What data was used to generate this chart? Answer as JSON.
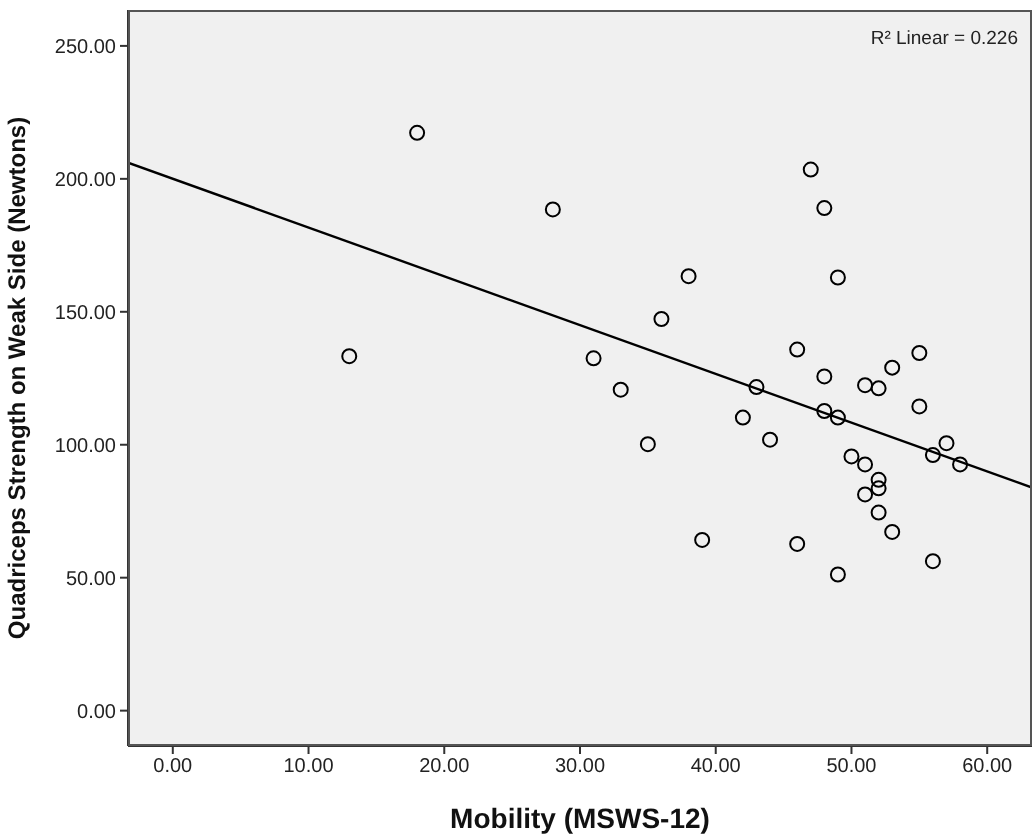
{
  "chart_data": {
    "type": "scatter",
    "xlabel": "Mobility (MSWS-12)",
    "ylabel": "Quadriceps Strength on Weak Side (Newtons)",
    "xlim": [
      -3.3,
      63.3
    ],
    "ylim": [
      -13.3,
      263.5
    ],
    "xticks": [
      {
        "value": 0,
        "label": "0.00"
      },
      {
        "value": 10,
        "label": "10.00"
      },
      {
        "value": 20,
        "label": "20.00"
      },
      {
        "value": 30,
        "label": "30.00"
      },
      {
        "value": 40,
        "label": "40.00"
      },
      {
        "value": 50,
        "label": "50.00"
      },
      {
        "value": 60,
        "label": "60.00"
      }
    ],
    "yticks": [
      {
        "value": 0,
        "label": "0.00"
      },
      {
        "value": 50,
        "label": "50.00"
      },
      {
        "value": 100,
        "label": "100.00"
      },
      {
        "value": 150,
        "label": "150.00"
      },
      {
        "value": 200,
        "label": "200.00"
      },
      {
        "value": 250,
        "label": "250.00"
      }
    ],
    "grid": false,
    "legend": false,
    "marker": "circle",
    "annotations": [
      "R² Linear = 0.226"
    ],
    "series": [
      {
        "color": "#000000",
        "x": [
          18,
          28,
          13,
          31,
          33,
          47,
          48,
          38,
          49,
          36,
          46,
          55,
          53,
          48,
          51,
          52,
          43,
          42,
          48,
          49,
          55,
          35,
          44,
          57,
          56,
          58,
          50,
          51,
          52,
          52,
          51,
          52,
          53,
          39,
          46,
          56,
          49
        ],
        "values": [
          217.3,
          188.5,
          133.3,
          132.5,
          120.7,
          203.5,
          189.0,
          163.4,
          162.9,
          147.3,
          135.8,
          134.5,
          129.0,
          125.7,
          122.4,
          121.2,
          121.7,
          110.2,
          112.7,
          110.2,
          114.4,
          100.2,
          101.9,
          100.6,
          96.1,
          92.6,
          95.6,
          92.6,
          86.8,
          83.6,
          81.3,
          74.5,
          67.2,
          64.2,
          62.7,
          56.2,
          51.2
        ]
      },
      {
        "type": "line",
        "color": "#000000",
        "marker": "none",
        "x": [
          -3.3,
          63.3
        ],
        "values": [
          206.1,
          83.9
        ]
      }
    ]
  }
}
